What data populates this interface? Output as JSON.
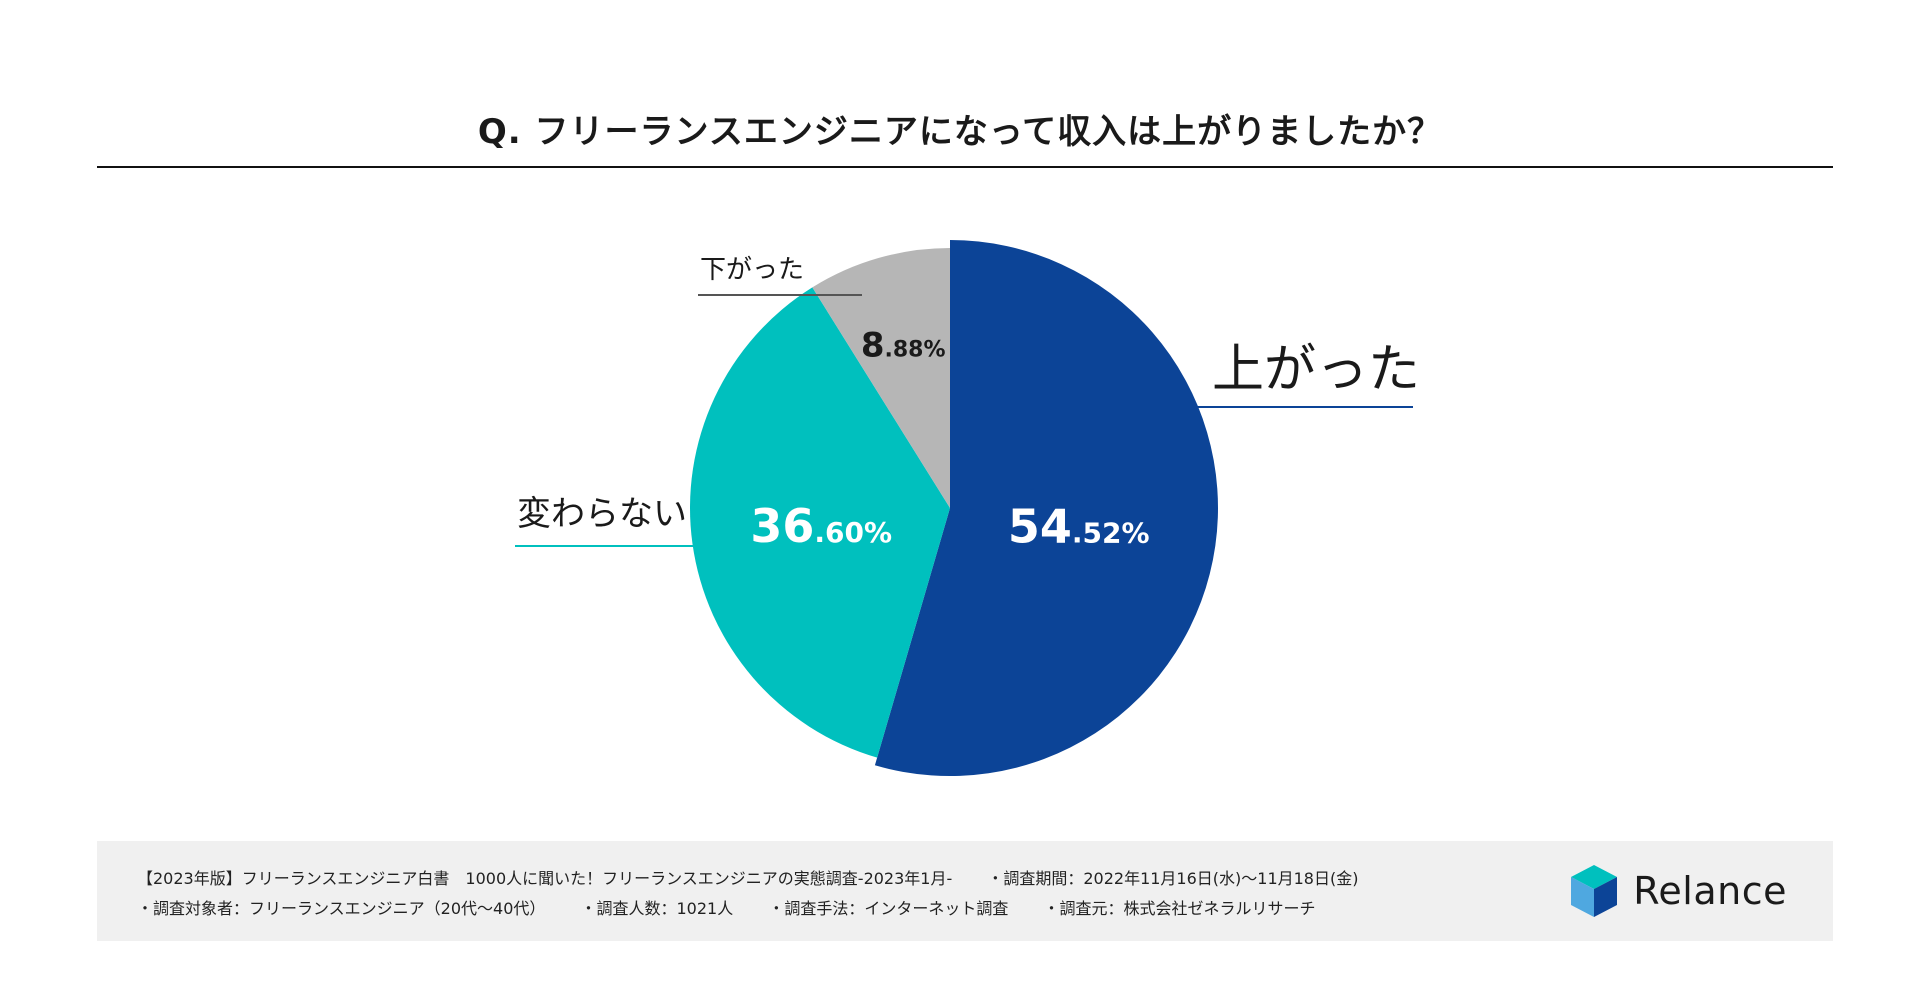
{
  "title": "Q. フリーランスエンジニアになって収入は上がりましたか？",
  "chart_data": {
    "type": "pie",
    "title": "Q. フリーランスエンジニアになって収入は上がりましたか？",
    "slices": [
      {
        "label": "上がった",
        "value": 54.52,
        "int": "54",
        "dec": ".52%",
        "color": "#0c4497"
      },
      {
        "label": "変わらない",
        "value": 36.6,
        "int": "36",
        "dec": ".60%",
        "color": "#00c0be"
      },
      {
        "label": "下がった",
        "value": 8.88,
        "int": "8",
        "dec": ".88%",
        "color": "#b6b6b6"
      }
    ]
  },
  "footer": {
    "line1": [
      "【2023年版】フリーランスエンジニア白書　1000人に聞いた！フリーランスエンジニアの実態調査-2023年1月-",
      "・調査期間：2022年11月16日(水)〜11月18日(金)"
    ],
    "line2": [
      "・調査対象者：フリーランスエンジニア（20代〜40代）",
      "・調査人数：1021人",
      "・調査手法：インターネット調査",
      "・調査元：株式会社ゼネラルリサーチ"
    ]
  },
  "logo": {
    "text": "Relance",
    "colors": [
      "#0c4497",
      "#00c0be",
      "#4fa8e0"
    ]
  }
}
